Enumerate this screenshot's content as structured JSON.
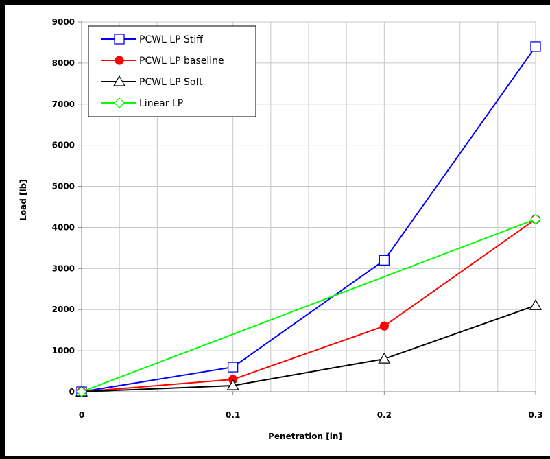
{
  "chart_data": {
    "type": "line",
    "title": "",
    "xlabel": "Penetration [in]",
    "ylabel": "Load [lb]",
    "xlim": [
      0,
      0.3
    ],
    "ylim": [
      0,
      9000
    ],
    "x_ticks": [
      0,
      0.1,
      0.2,
      0.3
    ],
    "x_tick_labels": [
      "0",
      "0.1",
      "0.2",
      "0.3"
    ],
    "y_ticks": [
      0,
      1000,
      2000,
      3000,
      4000,
      5000,
      6000,
      7000,
      8000,
      9000
    ],
    "y_tick_labels": [
      "0",
      "1000",
      "2000",
      "3000",
      "4000",
      "5000",
      "6000",
      "7000",
      "8000",
      "9000"
    ],
    "grid": true,
    "legend_position": "top-left",
    "series": [
      {
        "name": "PCWL LP Stiff",
        "color": "#0000ff",
        "marker": "square-open",
        "x": [
          0,
          0.1,
          0.2,
          0.3
        ],
        "y": [
          0,
          600,
          3200,
          8400
        ]
      },
      {
        "name": "PCWL LP baseline",
        "color": "#ff0000",
        "marker": "circle-filled",
        "x": [
          0,
          0.1,
          0.2,
          0.3
        ],
        "y": [
          0,
          300,
          1600,
          4200
        ]
      },
      {
        "name": "PCWL LP Soft",
        "color": "#000000",
        "marker": "triangle-open",
        "x": [
          0,
          0.1,
          0.2,
          0.3
        ],
        "y": [
          0,
          150,
          800,
          2100
        ]
      },
      {
        "name": "Linear LP",
        "color": "#00ff00",
        "marker": "diamond-open",
        "x": [
          0,
          0.3
        ],
        "y": [
          0,
          4200
        ]
      }
    ]
  }
}
